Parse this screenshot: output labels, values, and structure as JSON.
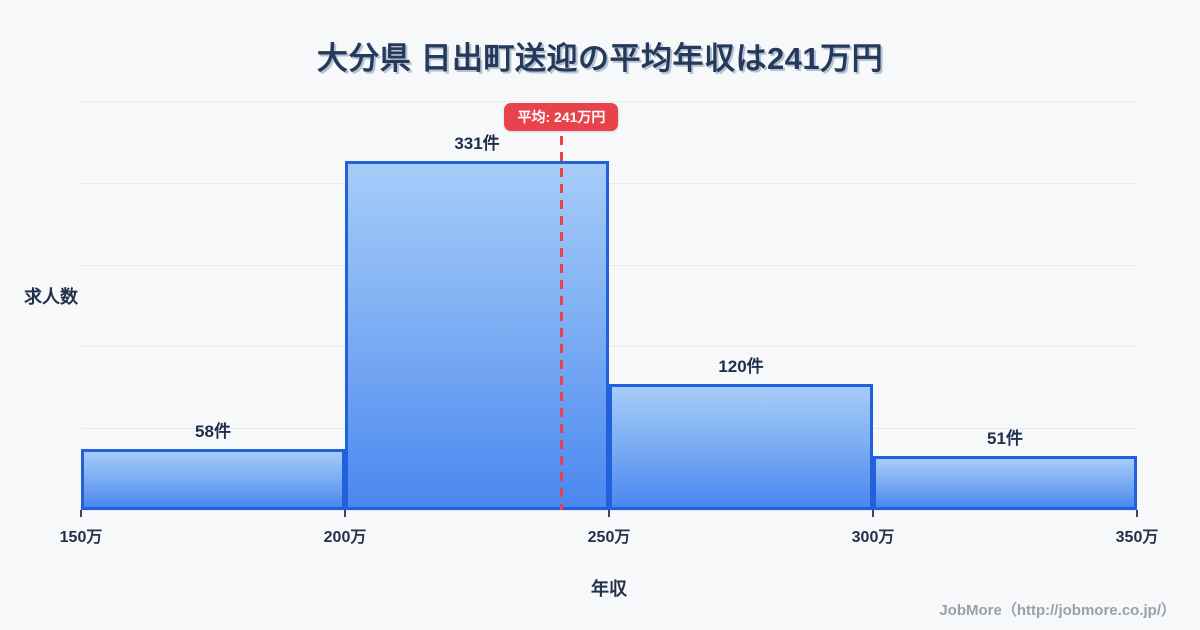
{
  "title": "大分県 日出町送迎の平均年収は241万円",
  "chart_data": {
    "type": "bar",
    "title": "大分県 日出町送迎の平均年収は241万円",
    "categories": [
      "150万-200万",
      "200万-250万",
      "250万-300万",
      "300万-350万"
    ],
    "values": [
      58,
      331,
      120,
      51
    ],
    "bar_labels": [
      "58件",
      "331件",
      "120件",
      "51件"
    ],
    "x_ticks": [
      "150万",
      "200万",
      "250万",
      "300万",
      "350万"
    ],
    "x_range": [
      150,
      350
    ],
    "ylim": [
      0,
      388
    ],
    "xlabel": "年収",
    "ylabel": "求人数",
    "grid": true,
    "gridline_count": 6,
    "legend": "none",
    "average_line": {
      "value": 241,
      "label": "平均: 241万円"
    },
    "colors": {
      "bar_fill_top": "#a6ccf8",
      "bar_fill_bottom": "#4b87f0",
      "bar_border": "#2161dc",
      "average": "#e8434b",
      "title_text": "#253a5b",
      "label_text": "#23304a",
      "gridline": "#e8eaef",
      "background": "#f7f8fa",
      "credit_text": "#9aa0a8"
    }
  },
  "footer": {
    "credit": "JobMore（http://jobmore.co.jp/）"
  }
}
